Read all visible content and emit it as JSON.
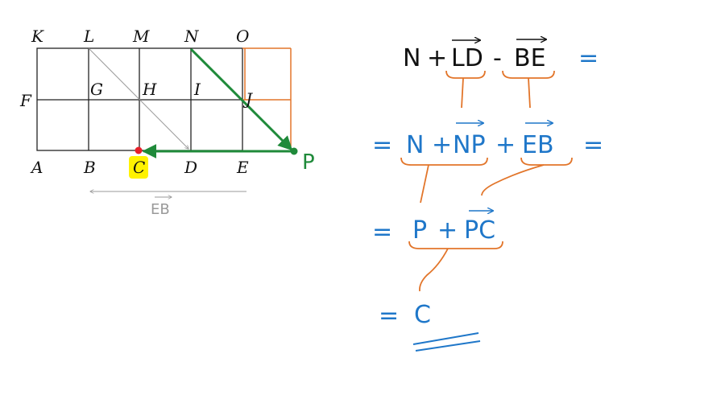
{
  "colors": {
    "ink": "#111111",
    "grid": "#222222",
    "green": "#1f8a3a",
    "orange": "#e2752a",
    "blue": "#1f77c9",
    "gray": "#9a9a9a",
    "highlight": "#fff200",
    "red": "#e8202a"
  },
  "grid_points": {
    "top": [
      "K",
      "L",
      "M",
      "N",
      "O"
    ],
    "middle": [
      "F",
      "G",
      "H",
      "I",
      "J"
    ],
    "bottom": [
      "A",
      "B",
      "C",
      "D",
      "E"
    ],
    "extra": "P"
  },
  "hint_vector": "EB",
  "derivation": {
    "line1": {
      "start": "N",
      "op1": "+",
      "vec1": "LD",
      "op2": "-",
      "vec2": "BE",
      "equals": "="
    },
    "line2": {
      "equals": "=",
      "start": "N",
      "op1": "+",
      "vec1": "NP",
      "op2": "+",
      "vec2": "EB",
      "equals_end": "="
    },
    "line3": {
      "equals": "=",
      "start": "P",
      "op1": "+",
      "vec1": "PC"
    },
    "line4": {
      "equals": "=",
      "result": "C"
    }
  }
}
